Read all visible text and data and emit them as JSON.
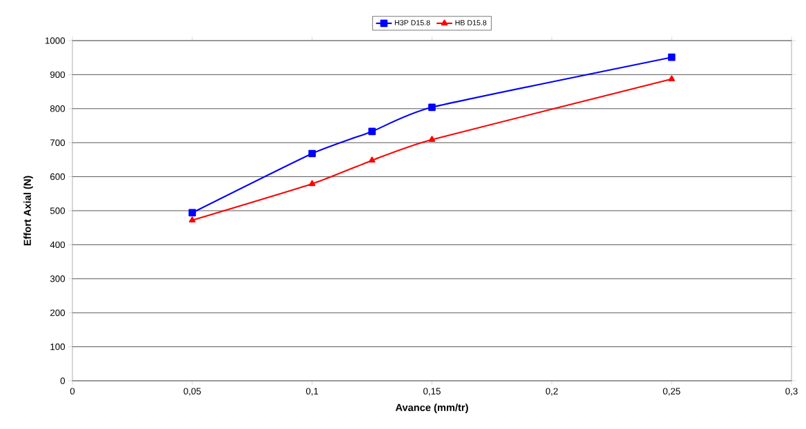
{
  "chart_data": {
    "type": "line",
    "xlabel": "Avance (mm/tr)",
    "ylabel": "Effort Axial (N)",
    "xlim": [
      0,
      0.3
    ],
    "xticks": [
      0,
      {
        "value": 0.05,
        "label": "0,05"
      },
      {
        "value": 0.1,
        "label": "0,1"
      },
      {
        "value": 0.15,
        "label": "0,15"
      },
      {
        "value": 0.2,
        "label": "0,2"
      },
      {
        "value": 0.25,
        "label": "0,25"
      },
      {
        "value": 0.3,
        "label": "0,3"
      }
    ],
    "ylim": [
      0,
      1000
    ],
    "yticks": [
      0,
      100,
      200,
      300,
      400,
      500,
      600,
      700,
      800,
      900,
      1000
    ],
    "grid": "y",
    "legend": "top",
    "series": [
      {
        "name": "H3P D15.8",
        "color": "#0000ff",
        "marker": "square",
        "x": [
          0.05,
          0.1,
          0.125,
          0.15,
          0.25
        ],
        "values": [
          494,
          668,
          733,
          804,
          951
        ]
      },
      {
        "name": "HB D15.8",
        "color": "#ff0000",
        "marker": "triangle",
        "x": [
          0.05,
          0.1,
          0.125,
          0.15,
          0.25
        ],
        "values": [
          472,
          579,
          648,
          709,
          887
        ]
      }
    ]
  }
}
